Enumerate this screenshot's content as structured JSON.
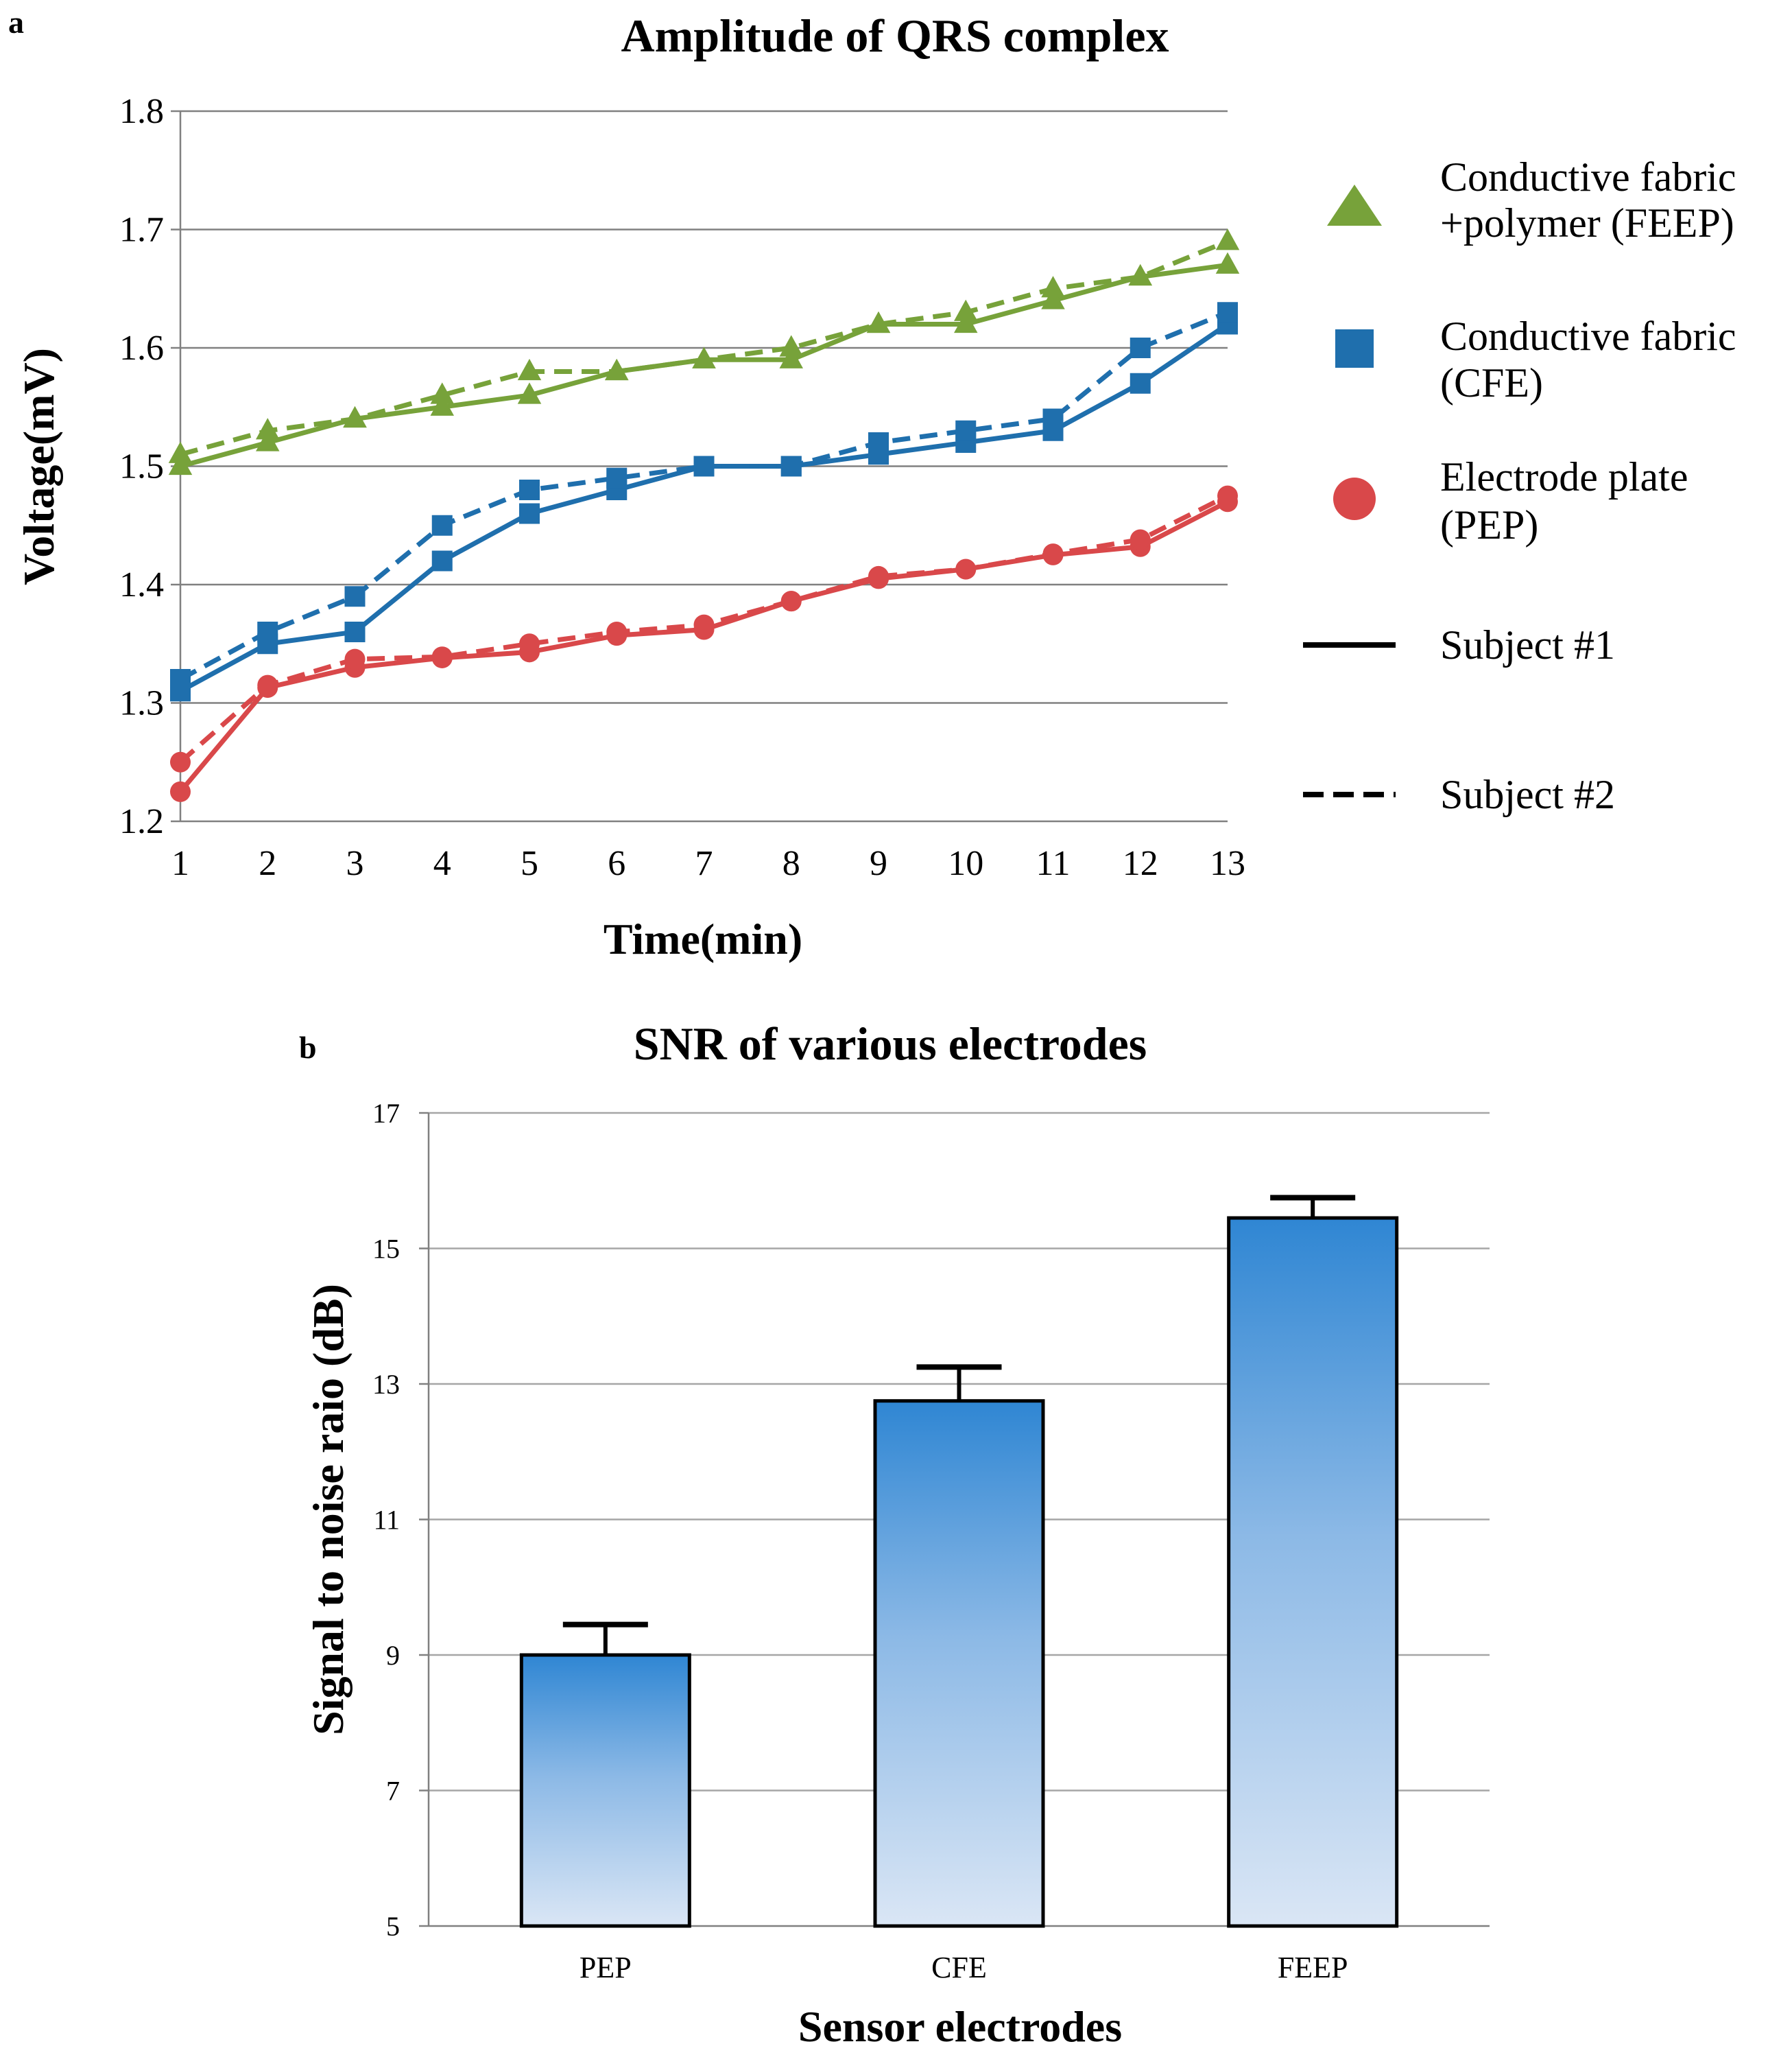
{
  "chart_data": [
    {
      "panel": "a",
      "type": "line",
      "title": "Amplitude  of QRS complex",
      "xlabel": "Time(min)",
      "ylabel": "Voltage(mV)",
      "x": [
        1,
        2,
        3,
        4,
        5,
        6,
        7,
        8,
        9,
        10,
        11,
        12,
        13
      ],
      "ylim": [
        1.2,
        1.8
      ],
      "yticks": [
        "1.2",
        "1.3",
        "1.4",
        "1.5",
        "1.6",
        "1.7",
        "1.8"
      ],
      "grid": true,
      "legend_position": "right",
      "colors": {
        "FEEP": "#77a23a",
        "CFE": "#1f6fad",
        "PEP": "#d9484a"
      },
      "legend": [
        {
          "marker": "triangle",
          "color": "#77a23a",
          "lines": [
            "Conductive fabric",
            "+polymer (FEEP)"
          ]
        },
        {
          "marker": "square",
          "color": "#1f6fad",
          "lines": [
            "Conductive fabric",
            "(CFE)"
          ]
        },
        {
          "marker": "circle",
          "color": "#d9484a",
          "lines": [
            "Electrode plate",
            "(PEP)"
          ]
        },
        {
          "marker": "solid-line",
          "color": "#000000",
          "lines": [
            "Subject #1"
          ]
        },
        {
          "marker": "dashed-line",
          "color": "#000000",
          "lines": [
            "Subject #2"
          ]
        }
      ],
      "series": [
        {
          "group": "FEEP",
          "subject": 1,
          "style": "solid",
          "marker": "triangle",
          "color": "#77a23a",
          "values": [
            1.5,
            1.52,
            1.54,
            1.55,
            1.56,
            1.58,
            1.59,
            1.59,
            1.62,
            1.62,
            1.64,
            1.66,
            1.67
          ]
        },
        {
          "group": "FEEP",
          "subject": 2,
          "style": "dashed",
          "marker": "triangle",
          "color": "#77a23a",
          "values": [
            1.51,
            1.53,
            1.54,
            1.56,
            1.58,
            1.58,
            1.59,
            1.6,
            1.62,
            1.63,
            1.65,
            1.66,
            1.69
          ]
        },
        {
          "group": "CFE",
          "subject": 1,
          "style": "solid",
          "marker": "square",
          "color": "#1f6fad",
          "values": [
            1.31,
            1.35,
            1.36,
            1.42,
            1.46,
            1.48,
            1.5,
            1.5,
            1.51,
            1.52,
            1.53,
            1.57,
            1.62
          ]
        },
        {
          "group": "CFE",
          "subject": 2,
          "style": "dashed",
          "marker": "square",
          "color": "#1f6fad",
          "values": [
            1.32,
            1.36,
            1.39,
            1.45,
            1.48,
            1.49,
            1.5,
            1.5,
            1.52,
            1.53,
            1.54,
            1.6,
            1.63
          ]
        },
        {
          "group": "PEP",
          "subject": 1,
          "style": "solid",
          "marker": "circle",
          "color": "#d9484a",
          "values": [
            1.225,
            1.313,
            1.33,
            1.338,
            1.343,
            1.357,
            1.362,
            1.386,
            1.405,
            1.413,
            1.425,
            1.432,
            1.47
          ]
        },
        {
          "group": "PEP",
          "subject": 2,
          "style": "dashed",
          "marker": "circle",
          "color": "#d9484a",
          "values": [
            1.25,
            1.315,
            1.337,
            1.339,
            1.35,
            1.36,
            1.366,
            1.386,
            1.407,
            1.413,
            1.426,
            1.438,
            1.475
          ]
        }
      ]
    },
    {
      "panel": "b",
      "type": "bar",
      "title": "SNR of various electrodes",
      "xlabel": "Sensor electrodes",
      "ylabel": "Signal to noise raio (dB)",
      "categories": [
        "PEP",
        "CFE",
        "FEEP"
      ],
      "values": [
        9.0,
        12.75,
        15.45
      ],
      "error_upper": [
        0.45,
        0.5,
        0.3
      ],
      "ylim": [
        5,
        17
      ],
      "yticks": [
        "5",
        "7",
        "9",
        "11",
        "13",
        "15",
        "17"
      ],
      "grid": true,
      "bar_gradient": {
        "top": "#2f86d3",
        "bottom": "#dae6f5"
      }
    }
  ]
}
